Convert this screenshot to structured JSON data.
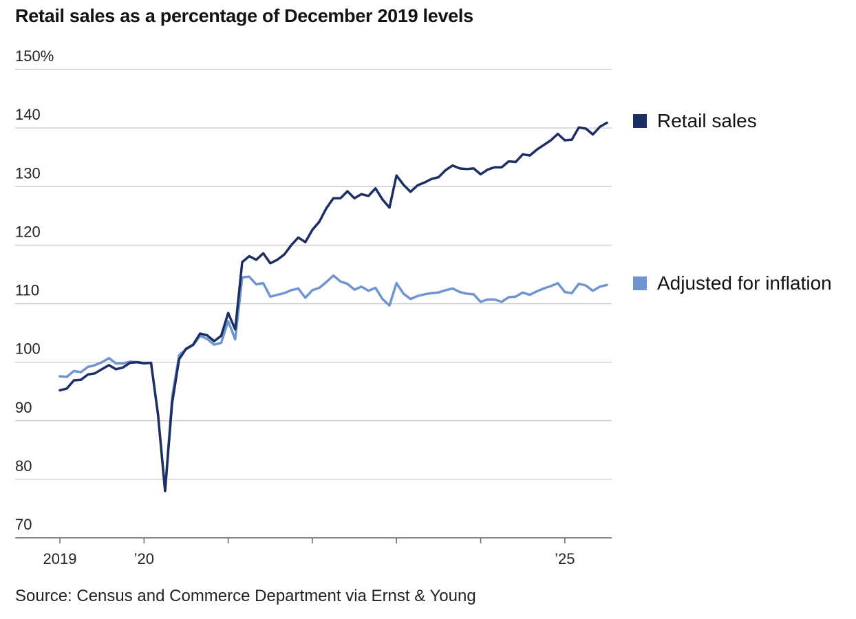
{
  "source": "Source: Census and Commerce Department via Ernst & Young",
  "chart_data": {
    "type": "line",
    "title": "Retail sales as a percentage of December 2019 levels",
    "xlabel": "",
    "ylabel": "",
    "ylim": [
      70,
      150
    ],
    "yticks": [
      {
        "value": 70,
        "label": "70"
      },
      {
        "value": 80,
        "label": "80"
      },
      {
        "value": 90,
        "label": "90"
      },
      {
        "value": 100,
        "label": "100"
      },
      {
        "value": 110,
        "label": "110"
      },
      {
        "value": 120,
        "label": "120"
      },
      {
        "value": 130,
        "label": "130"
      },
      {
        "value": 140,
        "label": "140"
      },
      {
        "value": 150,
        "label": "150%"
      }
    ],
    "x_start": 2019.0,
    "x_step": 0.08333333,
    "xlim": [
      2019.0,
      2025.55
    ],
    "xticks": [
      {
        "value": 2019,
        "label": "2019"
      },
      {
        "value": 2020,
        "label": "’20"
      },
      {
        "value": 2021,
        "label": ""
      },
      {
        "value": 2022,
        "label": ""
      },
      {
        "value": 2023,
        "label": ""
      },
      {
        "value": 2024,
        "label": ""
      },
      {
        "value": 2025,
        "label": "’25"
      }
    ],
    "grid": true,
    "legend_position": "right",
    "series": [
      {
        "name": "Retail sales",
        "color": "#1c2e64",
        "values": [
          95.2,
          95.5,
          96.9,
          97.0,
          97.9,
          98.1,
          98.8,
          99.5,
          98.8,
          99.1,
          99.9,
          100.0,
          99.8,
          99.9,
          91.0,
          78.0,
          93.0,
          100.5,
          102.3,
          103.0,
          104.9,
          104.6,
          103.6,
          104.5,
          108.4,
          105.6,
          117.1,
          118.1,
          117.5,
          118.6,
          116.9,
          117.5,
          118.4,
          120.0,
          121.3,
          120.5,
          122.6,
          124.0,
          126.3,
          128.0,
          128.0,
          129.2,
          128.0,
          128.7,
          128.4,
          129.7,
          127.8,
          126.4,
          131.9,
          130.3,
          129.1,
          130.2,
          130.7,
          131.3,
          131.6,
          132.8,
          133.6,
          133.1,
          133.0,
          133.1,
          132.1,
          132.9,
          133.3,
          133.3,
          134.3,
          134.2,
          135.5,
          135.3,
          136.3,
          137.1,
          137.9,
          139.0,
          137.9,
          138.0,
          140.1,
          139.9,
          138.9,
          140.2,
          140.9
        ]
      },
      {
        "name": "Adjusted for inflation",
        "color": "#6f95d1",
        "values": [
          97.6,
          97.5,
          98.5,
          98.3,
          99.2,
          99.5,
          100.0,
          100.7,
          99.8,
          99.8,
          100.1,
          100.0,
          99.9,
          99.9,
          91.0,
          78.0,
          94.0,
          101.2,
          102.2,
          102.9,
          104.5,
          104.0,
          103.0,
          103.3,
          107.0,
          103.9,
          114.5,
          114.6,
          113.3,
          113.5,
          111.2,
          111.5,
          111.8,
          112.3,
          112.6,
          111.0,
          112.3,
          112.7,
          113.7,
          114.8,
          113.8,
          113.4,
          112.4,
          112.9,
          112.2,
          112.7,
          110.8,
          109.7,
          113.5,
          111.7,
          110.8,
          111.3,
          111.6,
          111.8,
          111.9,
          112.3,
          112.6,
          112.0,
          111.7,
          111.6,
          110.3,
          110.7,
          110.7,
          110.3,
          111.1,
          111.2,
          111.9,
          111.5,
          112.1,
          112.6,
          113.0,
          113.5,
          112.0,
          111.8,
          113.4,
          113.1,
          112.2,
          112.9,
          113.2
        ]
      }
    ]
  }
}
